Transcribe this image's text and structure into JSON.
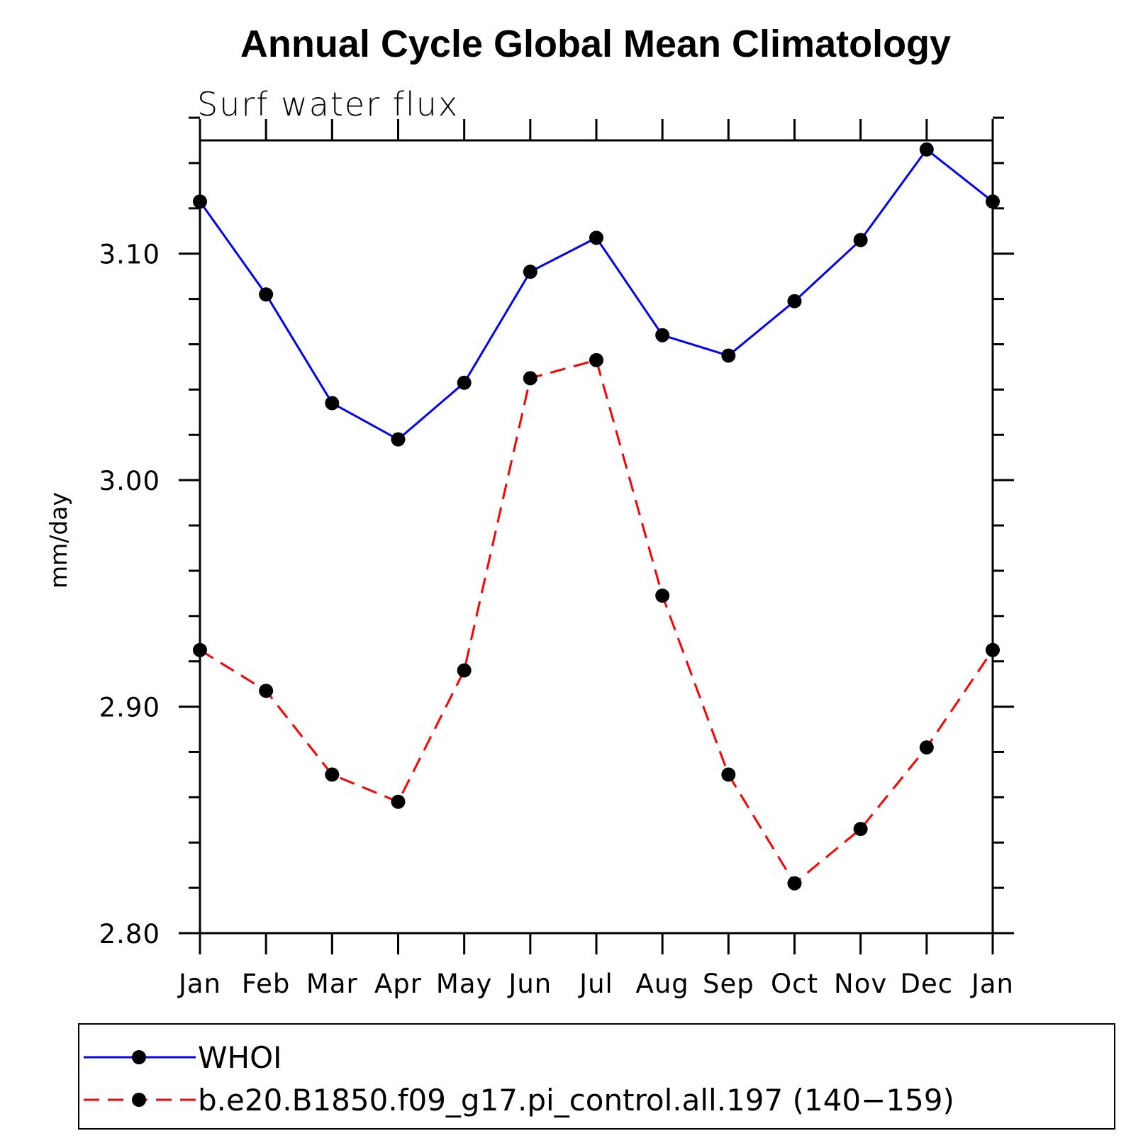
{
  "chart_data": {
    "type": "line",
    "title": "Annual Cycle Global Mean Climatology",
    "subtitle": "Surf water flux",
    "ylabel": "mm/day",
    "xlabel": "",
    "categories": [
      "Jan",
      "Feb",
      "Mar",
      "Apr",
      "May",
      "Jun",
      "Jul",
      "Aug",
      "Sep",
      "Oct",
      "Nov",
      "Dec",
      "Jan"
    ],
    "ylim": [
      2.8,
      3.15
    ],
    "yticks": [
      "2.80",
      "2.90",
      "3.00",
      "3.10"
    ],
    "ytick_values": [
      2.8,
      2.9,
      3.0,
      3.1
    ],
    "yminor_step": 0.02,
    "grid": false,
    "legend_position": "bottom",
    "series": [
      {
        "name": "WHOI",
        "color": "#0000ff",
        "dash": "solid",
        "marker": "filled-circle",
        "values": [
          3.123,
          3.082,
          3.034,
          3.018,
          3.043,
          3.092,
          3.107,
          3.064,
          3.055,
          3.079,
          3.106,
          3.146,
          3.123
        ]
      },
      {
        "name": "b.e20.B1850.f09_g17.pi_control.all.197 (140−159)",
        "color": "#ff0000",
        "dash": "dashed",
        "marker": "filled-circle",
        "values": [
          2.925,
          2.907,
          2.87,
          2.858,
          2.916,
          3.045,
          3.053,
          2.949,
          2.87,
          2.822,
          2.846,
          2.882,
          2.925
        ]
      }
    ]
  }
}
